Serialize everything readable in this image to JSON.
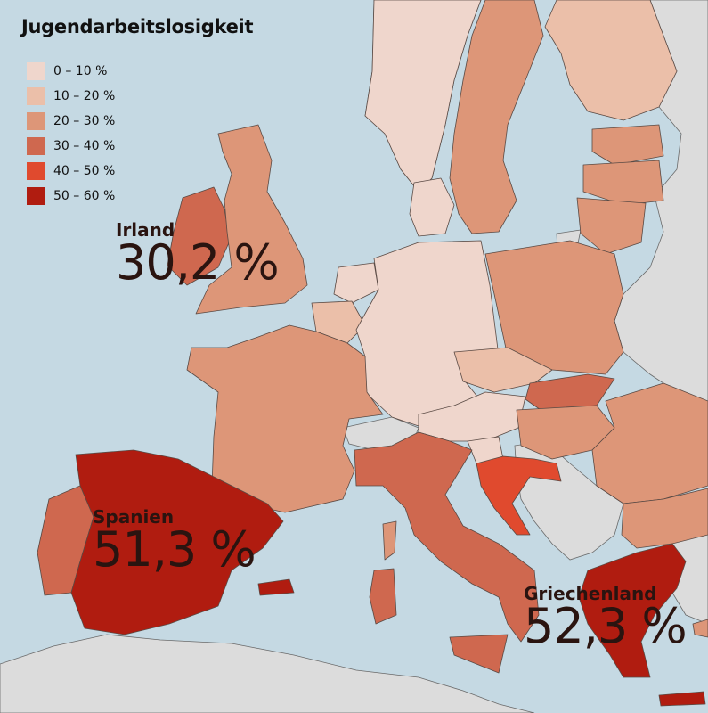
{
  "title": "Jugendarbeitslosigkeit",
  "legend": [
    {
      "label": "0 – 10 %",
      "color": "#efd6cc"
    },
    {
      "label": "10 – 20 %",
      "color": "#ebbfa9"
    },
    {
      "label": "20 – 30 %",
      "color": "#dd9678"
    },
    {
      "label": "30 – 40 %",
      "color": "#cf684f"
    },
    {
      "label": "40 – 50 %",
      "color": "#e04a2e"
    },
    {
      "label": "50 – 60 %",
      "color": "#b01c10"
    }
  ],
  "callouts": {
    "irland": {
      "name": "Irland",
      "value": "30,2 %"
    },
    "spanien": {
      "name": "Spanien",
      "value": "51,3 %"
    },
    "griechenland": {
      "name": "Griechenland",
      "value": "52,3 %"
    }
  },
  "colors": {
    "sea": "#c5d9e3",
    "non_data": "#dcdcdc",
    "border": "#5a4a44"
  }
}
